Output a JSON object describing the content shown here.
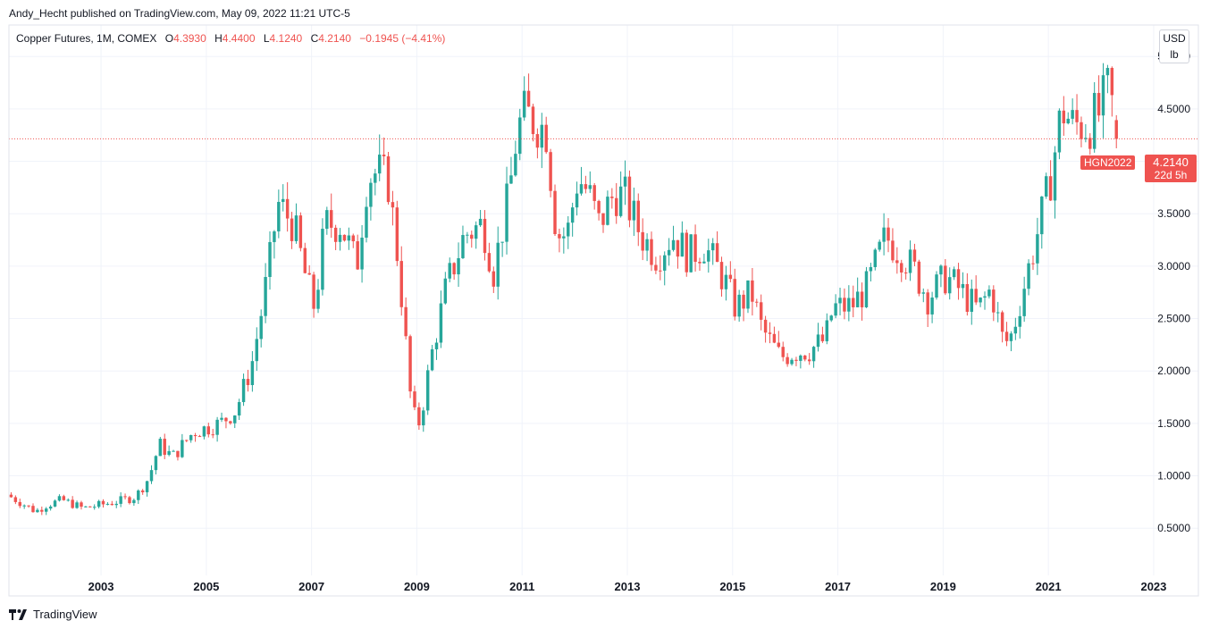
{
  "header": {
    "publisher_line": "Andy_Hecht published on TradingView.com, May 09, 2022 11:21 UTC-5"
  },
  "legend": {
    "symbol": "Copper Futures, 1M, COMEX",
    "open_label": "O",
    "open": "4.3930",
    "high_label": "H",
    "high": "4.4400",
    "low_label": "L",
    "low": "4.1240",
    "close_label": "C",
    "close": "4.2140",
    "change": "−0.1945 (−4.41%)"
  },
  "price_scale": {
    "currency": "USD",
    "unit": "lb"
  },
  "last_price": {
    "symbol": "HGN2022",
    "price": "4.2140",
    "countdown": "22d 5h"
  },
  "branding": {
    "name": "TradingView"
  },
  "colors": {
    "up": "#26a69a",
    "down": "#ef5350",
    "grid": "#f0f3fa",
    "text": "#131722"
  },
  "chart_data": {
    "type": "candlestick",
    "interval": "1M",
    "grid": true,
    "x_axis": {
      "ticks": [
        "2003",
        "2005",
        "2007",
        "2009",
        "2011",
        "2013",
        "2015",
        "2017",
        "2019",
        "2021",
        "2023"
      ],
      "range": [
        2001.25,
        2023.85
      ]
    },
    "y_axis": {
      "ticks": [
        "5.0000",
        "4.5000",
        "4.0000",
        "3.5000",
        "3.0000",
        "2.5000",
        "2.0000",
        "1.5000",
        "1.0000",
        "0.5000"
      ],
      "range": [
        0.05,
        5.3
      ],
      "position": "right"
    },
    "anchors": [
      [
        2001.25,
        0.82
      ],
      [
        2001.5,
        0.75
      ],
      [
        2001.8,
        0.66
      ],
      [
        2002.0,
        0.72
      ],
      [
        2002.3,
        0.77
      ],
      [
        2002.7,
        0.69
      ],
      [
        2003.0,
        0.72
      ],
      [
        2003.4,
        0.76
      ],
      [
        2003.7,
        0.8
      ],
      [
        2003.95,
        0.98
      ],
      [
        2004.15,
        1.3
      ],
      [
        2004.4,
        1.18
      ],
      [
        2004.8,
        1.42
      ],
      [
        2005.0,
        1.45
      ],
      [
        2005.3,
        1.5
      ],
      [
        2005.6,
        1.62
      ],
      [
        2005.9,
        2.05
      ],
      [
        2006.05,
        2.45
      ],
      [
        2006.25,
        3.05
      ],
      [
        2006.4,
        3.6
      ],
      [
        2006.7,
        3.4
      ],
      [
        2006.95,
        2.85
      ],
      [
        2007.1,
        2.6
      ],
      [
        2007.3,
        3.4
      ],
      [
        2007.6,
        3.4
      ],
      [
        2007.9,
        3.0
      ],
      [
        2008.1,
        3.85
      ],
      [
        2008.3,
        3.9
      ],
      [
        2008.5,
        3.8
      ],
      [
        2008.7,
        3.0
      ],
      [
        2008.95,
        1.6
      ],
      [
        2009.1,
        1.5
      ],
      [
        2009.3,
        2.1
      ],
      [
        2009.6,
        2.8
      ],
      [
        2009.95,
        3.3
      ],
      [
        2010.3,
        3.4
      ],
      [
        2010.5,
        2.95
      ],
      [
        2010.8,
        3.7
      ],
      [
        2010.95,
        4.3
      ],
      [
        2011.1,
        4.45
      ],
      [
        2011.5,
        4.3
      ],
      [
        2011.7,
        3.3
      ],
      [
        2011.9,
        3.3
      ],
      [
        2012.1,
        3.85
      ],
      [
        2012.3,
        3.7
      ],
      [
        2012.5,
        3.4
      ],
      [
        2012.8,
        3.7
      ],
      [
        2013.0,
        3.65
      ],
      [
        2013.3,
        3.3
      ],
      [
        2013.6,
        3.1
      ],
      [
        2013.9,
        3.3
      ],
      [
        2014.2,
        3.1
      ],
      [
        2014.5,
        3.2
      ],
      [
        2014.9,
        2.85
      ],
      [
        2015.1,
        2.6
      ],
      [
        2015.4,
        2.75
      ],
      [
        2015.6,
        2.4
      ],
      [
        2015.95,
        2.13
      ],
      [
        2016.2,
        2.18
      ],
      [
        2016.5,
        2.2
      ],
      [
        2016.8,
        2.3
      ],
      [
        2016.95,
        2.6
      ],
      [
        2017.3,
        2.62
      ],
      [
        2017.6,
        2.8
      ],
      [
        2017.95,
        3.28
      ],
      [
        2018.3,
        3.1
      ],
      [
        2018.5,
        2.95
      ],
      [
        2018.75,
        2.7
      ],
      [
        2019.1,
        2.9
      ],
      [
        2019.35,
        2.78
      ],
      [
        2019.7,
        2.58
      ],
      [
        2019.95,
        2.78
      ],
      [
        2020.2,
        2.25
      ],
      [
        2020.35,
        2.35
      ],
      [
        2020.6,
        2.85
      ],
      [
        2020.9,
        3.45
      ],
      [
        2021.05,
        3.75
      ],
      [
        2021.3,
        4.5
      ],
      [
        2021.5,
        4.35
      ],
      [
        2021.8,
        4.35
      ],
      [
        2022.0,
        4.45
      ],
      [
        2022.2,
        4.7
      ],
      [
        2022.35,
        4.21
      ]
    ],
    "last_candle": {
      "open": 4.393,
      "high": 4.44,
      "low": 4.124,
      "close": 4.214
    }
  }
}
